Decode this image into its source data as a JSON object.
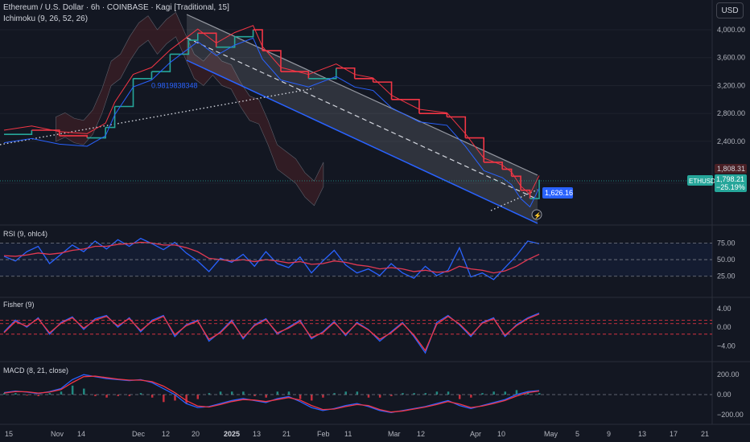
{
  "header": {
    "symbol_line": "Ethereum / U.S. Dollar · 6h · COINBASE · Kagi [Traditional, 15]",
    "ichimoku_label": "Ichimoku (9, 26, 52, 26)",
    "currency_button": "USD"
  },
  "colors": {
    "background": "#131722",
    "up": "#26a69a",
    "down": "#f23645",
    "rsi_line": "#2962ff",
    "rsi_ma": "#f23645",
    "channel_fill": "#b2b5be",
    "cloud_fill": "#4a2026"
  },
  "chart_data": [
    {
      "type": "line",
      "panel": "price",
      "ylabels": [
        "4,000.00",
        "3,600.00",
        "3,200.00",
        "2,800.00",
        "2,400.00",
        "1,800.00"
      ],
      "yticks": [
        4000,
        3600,
        3200,
        2800,
        2400,
        1800
      ],
      "ylim": [
        1500,
        4150
      ],
      "x_ticks": [
        "15",
        "Nov",
        "14",
        "Dec",
        "12",
        "20",
        "2025",
        "13",
        "21",
        "Feb",
        "11",
        "Mar",
        "12",
        "Apr",
        "10",
        "May",
        "5",
        "9",
        "13",
        "17",
        "21"
      ],
      "series": [
        {
          "x": [
            0,
            3,
            6,
            9,
            11,
            12,
            14,
            16,
            18,
            20,
            21,
            23,
            25,
            27,
            28,
            30,
            33,
            36,
            38,
            40,
            42,
            45,
            48,
            50,
            52,
            54,
            55,
            56,
            57,
            58
          ],
          "values": [
            2500,
            2560,
            2480,
            2450,
            2600,
            2900,
            3300,
            3400,
            3650,
            3850,
            3950,
            3750,
            3900,
            4000,
            3700,
            3400,
            3300,
            3450,
            3300,
            3250,
            3000,
            2800,
            2750,
            2450,
            2100,
            2000,
            1900,
            1700,
            1580,
            1850
          ]
        }
      ],
      "reference_lines": [
        {
          "label": "0.9819838348",
          "value": 3210
        }
      ],
      "price_badges": [
        {
          "label": "1,808.31",
          "value": 1808.31
        },
        {
          "label": "ETHUSD",
          "value": 1798.21
        },
        {
          "label": "1,798.21",
          "value": 1798.21
        },
        {
          "label": "−25.19%",
          "value": 1798.21
        },
        {
          "label": "1,626.16",
          "value": 1626.16
        }
      ]
    },
    {
      "type": "line",
      "panel": "rsi",
      "title": "RSI (9, ohlc4)",
      "ylabels": [
        "75.00",
        "50.00",
        "25.00"
      ],
      "yticks": [
        75,
        50,
        25
      ],
      "ylim": [
        15,
        90
      ],
      "series": [
        {
          "values": [
            55,
            48,
            62,
            70,
            44,
            58,
            72,
            62,
            78,
            66,
            80,
            70,
            82,
            74,
            65,
            76,
            60,
            48,
            32,
            52,
            46,
            58,
            40,
            62,
            44,
            38,
            54,
            30,
            48,
            64,
            42,
            30,
            36,
            26,
            44,
            30,
            22,
            40,
            26,
            34,
            68,
            24,
            30,
            20,
            38,
            56,
            78,
            74
          ]
        },
        {
          "values": [
            56,
            55,
            57,
            60,
            58,
            60,
            64,
            66,
            70,
            70,
            73,
            74,
            76,
            75,
            72,
            72,
            68,
            62,
            52,
            50,
            48,
            50,
            47,
            50,
            48,
            45,
            47,
            43,
            44,
            48,
            46,
            42,
            40,
            36,
            38,
            36,
            32,
            34,
            31,
            32,
            40,
            36,
            34,
            30,
            33,
            40,
            50,
            58
          ]
        }
      ]
    },
    {
      "type": "line",
      "panel": "fisher",
      "title": "Fisher (9)",
      "ylabels": [
        "4.00",
        "0.00",
        "−4.00"
      ],
      "yticks": [
        4,
        0,
        -4
      ],
      "ylim": [
        -6,
        5
      ],
      "series": [
        {
          "values": [
            -1,
            1.5,
            0,
            2,
            -1.5,
            1,
            2.2,
            -0.5,
            1.8,
            2.5,
            0,
            2,
            -1,
            1.5,
            2.5,
            -2,
            0.5,
            1.5,
            -3,
            -1,
            1.5,
            -2.5,
            0.5,
            1.8,
            -1.5,
            0,
            1.5,
            -2.5,
            -1,
            1.2,
            -1.8,
            1,
            -0.5,
            -3,
            -1,
            1,
            -2,
            -5.5,
            1,
            2.5,
            0.5,
            -2,
            1,
            2,
            -2,
            0.5,
            2,
            3
          ]
        },
        {
          "values": [
            -1.2,
            1.2,
            0.2,
            1.8,
            -1.2,
            0.8,
            2,
            -0.2,
            1.5,
            2.3,
            0.3,
            1.8,
            -0.7,
            1.2,
            2.3,
            -1.6,
            0.3,
            1.3,
            -2.6,
            -1.2,
            1.2,
            -2.2,
            0.3,
            1.6,
            -1.2,
            -0.2,
            1.2,
            -2.2,
            -1.2,
            1,
            -1.5,
            0.8,
            -0.6,
            -2.6,
            -1.2,
            0.8,
            -1.7,
            -5,
            0.6,
            2.3,
            0.7,
            -1.7,
            0.8,
            1.8,
            -1.7,
            0.3,
            1.8,
            2.8
          ]
        }
      ]
    },
    {
      "type": "bar",
      "panel": "macd",
      "title": "MACD (8, 21, close)",
      "ylabels": [
        "200.00",
        "0.00",
        "−200.00"
      ],
      "yticks": [
        200,
        0,
        -200
      ],
      "ylim": [
        -250,
        250
      ],
      "series": [
        {
          "values": [
            20,
            35,
            25,
            10,
            30,
            60,
            150,
            200,
            180,
            160,
            150,
            140,
            150,
            120,
            60,
            0,
            -90,
            -130,
            -120,
            -90,
            -60,
            -40,
            -60,
            -80,
            -40,
            -20,
            -70,
            -130,
            -160,
            -140,
            -110,
            -90,
            -120,
            -160,
            -180,
            -160,
            -140,
            -120,
            -90,
            -60,
            -110,
            -140,
            -110,
            -80,
            -50,
            0,
            30,
            40
          ]
        },
        {
          "values": [
            15,
            30,
            28,
            15,
            25,
            50,
            120,
            180,
            185,
            170,
            155,
            145,
            145,
            130,
            85,
            20,
            -60,
            -115,
            -125,
            -100,
            -70,
            -50,
            -55,
            -70,
            -50,
            -30,
            -55,
            -110,
            -150,
            -145,
            -120,
            -100,
            -110,
            -150,
            -175,
            -165,
            -145,
            -125,
            -100,
            -70,
            -95,
            -130,
            -115,
            -90,
            -60,
            -15,
            20,
            35
          ]
        }
      ]
    }
  ]
}
